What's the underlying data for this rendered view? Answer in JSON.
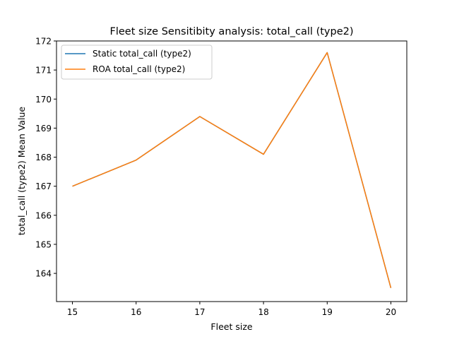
{
  "chart_data": {
    "type": "line",
    "title": "Fleet size Sensitibity analysis: total_call (type2)",
    "xlabel": "Fleet size",
    "ylabel": "total_call (type2) Mean Value",
    "x": [
      15,
      16,
      17,
      18,
      19,
      20
    ],
    "xticks": [
      "15",
      "16",
      "17",
      "18",
      "19",
      "20"
    ],
    "yticks": [
      "164",
      "165",
      "166",
      "167",
      "168",
      "169",
      "170",
      "171",
      "172"
    ],
    "xlim": [
      14.75,
      20.25
    ],
    "ylim": [
      163.03,
      172
    ],
    "grid": false,
    "legend_position": "upper-left",
    "series": [
      {
        "name": "Static total_call (type2)",
        "color": "#1f77b4",
        "values": [
          167.0,
          167.9,
          169.4,
          168.1,
          171.6,
          163.5
        ]
      },
      {
        "name": "ROA total_call (type2)",
        "color": "#ff7f0e",
        "values": [
          167.0,
          167.9,
          169.4,
          168.1,
          171.6,
          163.5
        ]
      }
    ]
  }
}
